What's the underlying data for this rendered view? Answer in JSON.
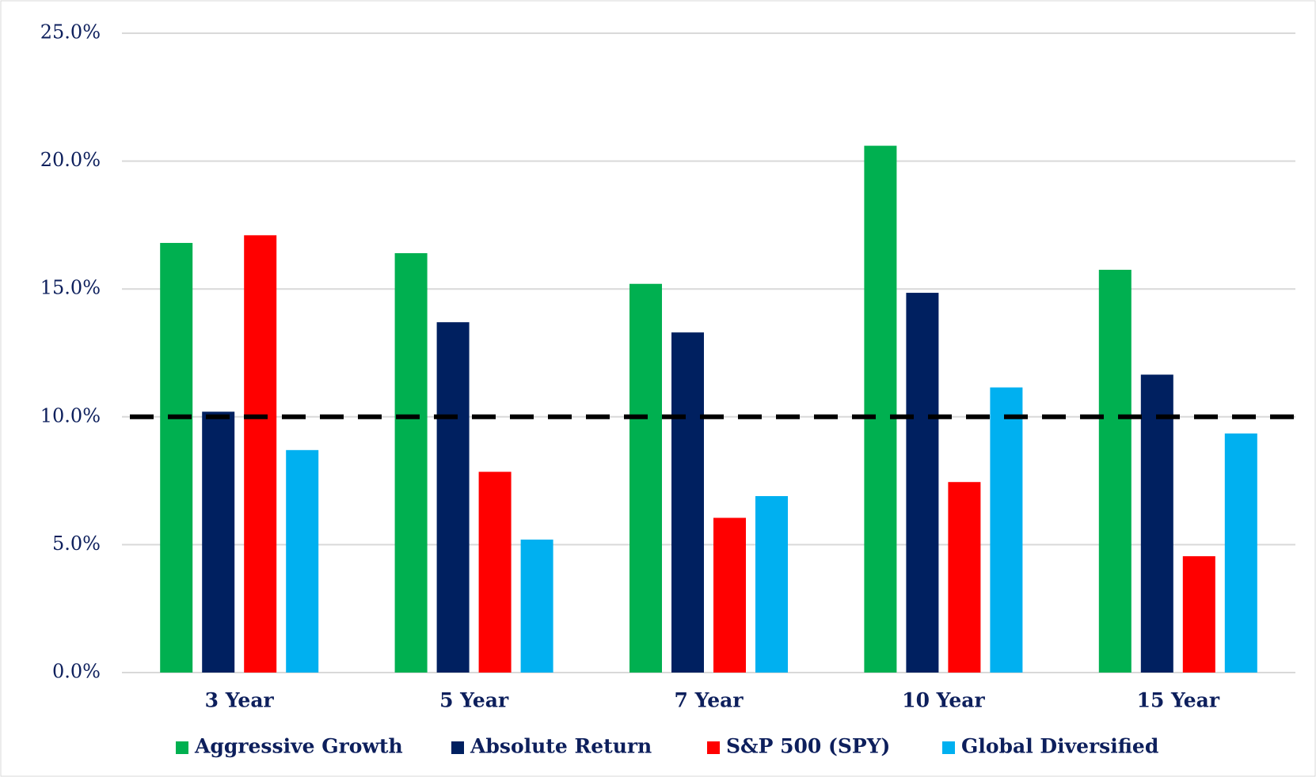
{
  "chart_data": {
    "type": "bar",
    "categories": [
      "3 Year",
      "5 Year",
      "7 Year",
      "10 Year",
      "15 Year"
    ],
    "series": [
      {
        "name": "Aggressive Growth",
        "color": "#00b050",
        "values": [
          16.8,
          16.4,
          15.2,
          20.6,
          15.75
        ]
      },
      {
        "name": "Absolute Return",
        "color": "#002060",
        "values": [
          10.2,
          13.7,
          13.3,
          14.85,
          11.65
        ]
      },
      {
        "name": "S&P 500 (SPY)",
        "color": "#ff0000",
        "values": [
          17.1,
          7.85,
          6.05,
          7.45,
          4.55
        ]
      },
      {
        "name": "Global Diversified",
        "color": "#00b0f0",
        "values": [
          8.7,
          5.2,
          6.9,
          11.15,
          9.35
        ]
      }
    ],
    "ylim": [
      0,
      25
    ],
    "yticks": [
      {
        "value": 0,
        "label": "0.0%"
      },
      {
        "value": 5,
        "label": "5.0%"
      },
      {
        "value": 10,
        "label": "10.0%"
      },
      {
        "value": 15,
        "label": "15.0%"
      },
      {
        "value": 20,
        "label": "20.0%"
      },
      {
        "value": 25,
        "label": "25.0%"
      }
    ],
    "reference_line": 10,
    "grid": true,
    "legend": "bottom"
  }
}
